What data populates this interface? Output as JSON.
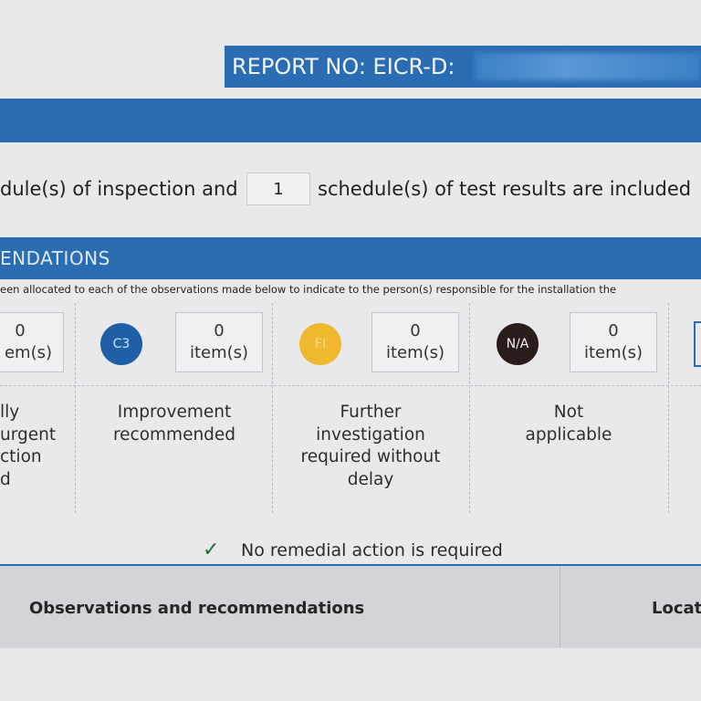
{
  "header": {
    "report_label": "REPORT NO: EICR-D:"
  },
  "schedules": {
    "text_before": "dule(s) of inspection and",
    "test_results_count": "1",
    "text_after": "schedule(s) of test results are included"
  },
  "section": {
    "title": "ENDATIONS",
    "note": "een allocated to each of the observations made below to indicate to the person(s) responsible for the installation the"
  },
  "codes": [
    {
      "code": "",
      "count": "0",
      "unit": "em(s)",
      "desc": [
        "lly",
        "urgent",
        "ction",
        "d"
      ]
    },
    {
      "code": "C3",
      "count": "0",
      "unit": "item(s)",
      "desc": [
        "Improvement",
        "recommended"
      ],
      "color": "#1f5fa8"
    },
    {
      "code": "FI",
      "count": "0",
      "unit": "item(s)",
      "desc": [
        "Further",
        "investigation",
        "required without",
        "delay"
      ],
      "color": "#f0b82e"
    },
    {
      "code": "N/A",
      "count": "0",
      "unit": "item(s)",
      "desc": [
        "Not",
        "applicable"
      ],
      "color": "#2a1c1a"
    }
  ],
  "remedial": {
    "checked": true,
    "label": "No remedial action is required"
  },
  "observations": {
    "col1": "Observations and recommendations",
    "col2": "Locat"
  }
}
